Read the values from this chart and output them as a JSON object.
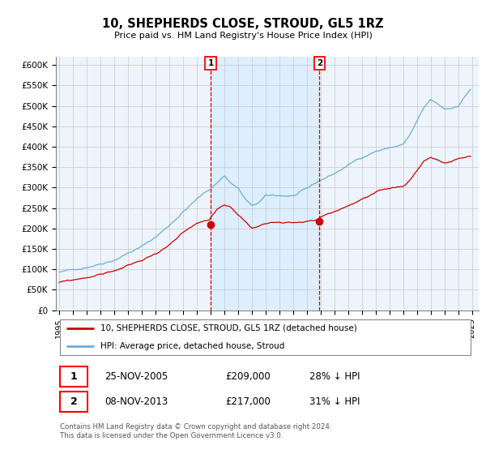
{
  "title": "10, SHEPHERDS CLOSE, STROUD, GL5 1RZ",
  "subtitle": "Price paid vs. HM Land Registry's House Price Index (HPI)",
  "ylim": [
    0,
    620000
  ],
  "yticks": [
    0,
    50000,
    100000,
    150000,
    200000,
    250000,
    300000,
    350000,
    400000,
    450000,
    500000,
    550000,
    600000
  ],
  "ytick_labels": [
    "£0",
    "£50K",
    "£100K",
    "£150K",
    "£200K",
    "£250K",
    "£300K",
    "£350K",
    "£400K",
    "£450K",
    "£500K",
    "£550K",
    "£600K"
  ],
  "hpi_color": "#6baed6",
  "property_color": "#cc0000",
  "vline_color": "#cc0000",
  "shade_color": "#ddeeff",
  "purchase1_x": 2006.0,
  "purchase1_price": 209000,
  "purchase2_x": 2013.92,
  "purchase2_price": 217000,
  "legend_property": "10, SHEPHERDS CLOSE, STROUD, GL5 1RZ (detached house)",
  "legend_hpi": "HPI: Average price, detached house, Stroud",
  "note1_date": "25-NOV-2005",
  "note1_price": "£209,000",
  "note1_pct": "28% ↓ HPI",
  "note2_date": "08-NOV-2013",
  "note2_price": "£217,000",
  "note2_pct": "31% ↓ HPI",
  "footer": "Contains HM Land Registry data © Crown copyright and database right 2024.\nThis data is licensed under the Open Government Licence v3.0.",
  "xlim": [
    1994.75,
    2025.5
  ],
  "xtick_years": [
    1995,
    1996,
    1997,
    1998,
    1999,
    2000,
    2001,
    2002,
    2003,
    2004,
    2005,
    2006,
    2007,
    2008,
    2009,
    2010,
    2011,
    2012,
    2013,
    2014,
    2015,
    2016,
    2017,
    2018,
    2019,
    2020,
    2021,
    2022,
    2023,
    2024,
    2025
  ],
  "bg_color": "#ffffff",
  "plot_bg_color": "#eef4fb",
  "grid_color": "#c8c8c8"
}
